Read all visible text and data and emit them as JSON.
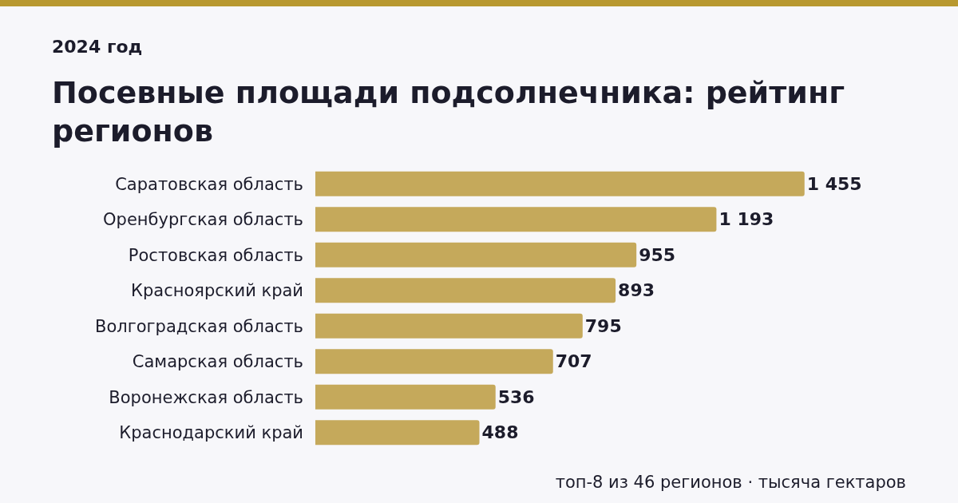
{
  "chart_data": {
    "type": "bar",
    "orientation": "horizontal",
    "title": "Посевные площади подсолнечника: рейтинг регионов",
    "subtitle": "2024 год",
    "categories": [
      "Саратовская область",
      "Оренбургская область",
      "Ростовская область",
      "Красноярский край",
      "Волгоградская область",
      "Самарская область",
      "Воронежская область",
      "Краснодарский край"
    ],
    "values": [
      1455,
      1193,
      955,
      893,
      795,
      707,
      536,
      488
    ],
    "value_labels": [
      "1 455",
      "1 193",
      "955",
      "893",
      "795",
      "707",
      "536",
      "488"
    ],
    "color": "#c5a95b",
    "tick_labels": "y",
    "annotations": [
      "топ-8 из 46 регионов · тысяча гектаров"
    ]
  }
}
